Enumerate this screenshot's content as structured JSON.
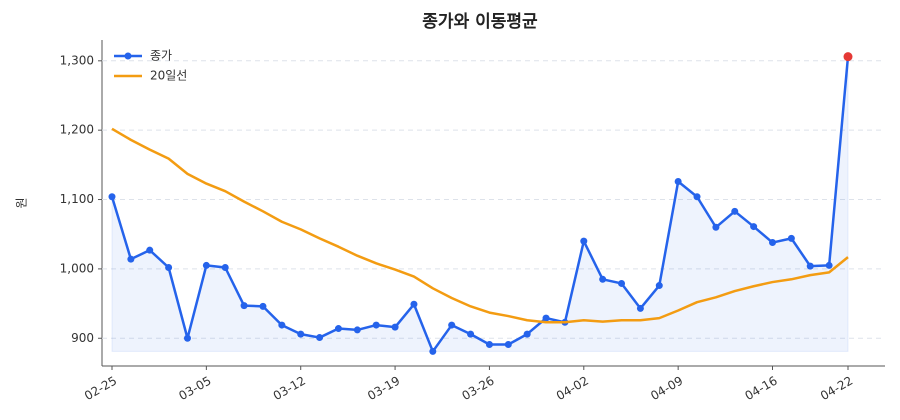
{
  "chart_data": {
    "type": "line",
    "title": "종가와 이동평균",
    "y_label": "원",
    "categories": [
      "02-25",
      null,
      null,
      null,
      null,
      "03-05",
      null,
      null,
      null,
      null,
      "03-12",
      null,
      null,
      null,
      null,
      "03-19",
      null,
      null,
      null,
      null,
      "03-26",
      null,
      null,
      null,
      null,
      "04-02",
      null,
      null,
      null,
      null,
      "04-09",
      null,
      null,
      null,
      null,
      "04-16",
      null,
      null,
      null,
      "04-22"
    ],
    "series": [
      {
        "name": "종가",
        "color": "#2563eb",
        "markers": true,
        "fill": true,
        "values": [
          1104,
          1014,
          1027,
          1002,
          900,
          1005,
          1002,
          947,
          946,
          919,
          906,
          901,
          914,
          912,
          919,
          916,
          949,
          881,
          919,
          906,
          891,
          891,
          906,
          929,
          923,
          1040,
          985,
          979,
          943,
          976,
          1126,
          1104,
          1060,
          1083,
          1061,
          1038,
          1044,
          1004,
          1005,
          1306
        ]
      },
      {
        "name": "20일선",
        "color": "#f39c12",
        "markers": false,
        "fill": false,
        "values": [
          1202,
          1186,
          1172,
          1159,
          1137,
          1123,
          1112,
          1097,
          1083,
          1068,
          1057,
          1044,
          1032,
          1019,
          1008,
          999,
          989,
          972,
          958,
          946,
          937,
          932,
          926,
          923,
          923,
          926,
          924,
          926,
          926,
          929,
          940,
          952,
          959,
          968,
          975,
          981,
          985,
          991,
          995,
          1017
        ]
      }
    ],
    "highlight_last_color": "#e53935",
    "ylim": [
      860,
      1330
    ],
    "yticks": [
      900,
      {
        "value": 1000,
        "label": "1,000"
      },
      {
        "value": 1100,
        "label": "1,100"
      },
      {
        "value": 1200,
        "label": "1,200"
      },
      {
        "value": 1300,
        "label": "1,300"
      }
    ],
    "grid": true,
    "legend": "upper-left"
  }
}
